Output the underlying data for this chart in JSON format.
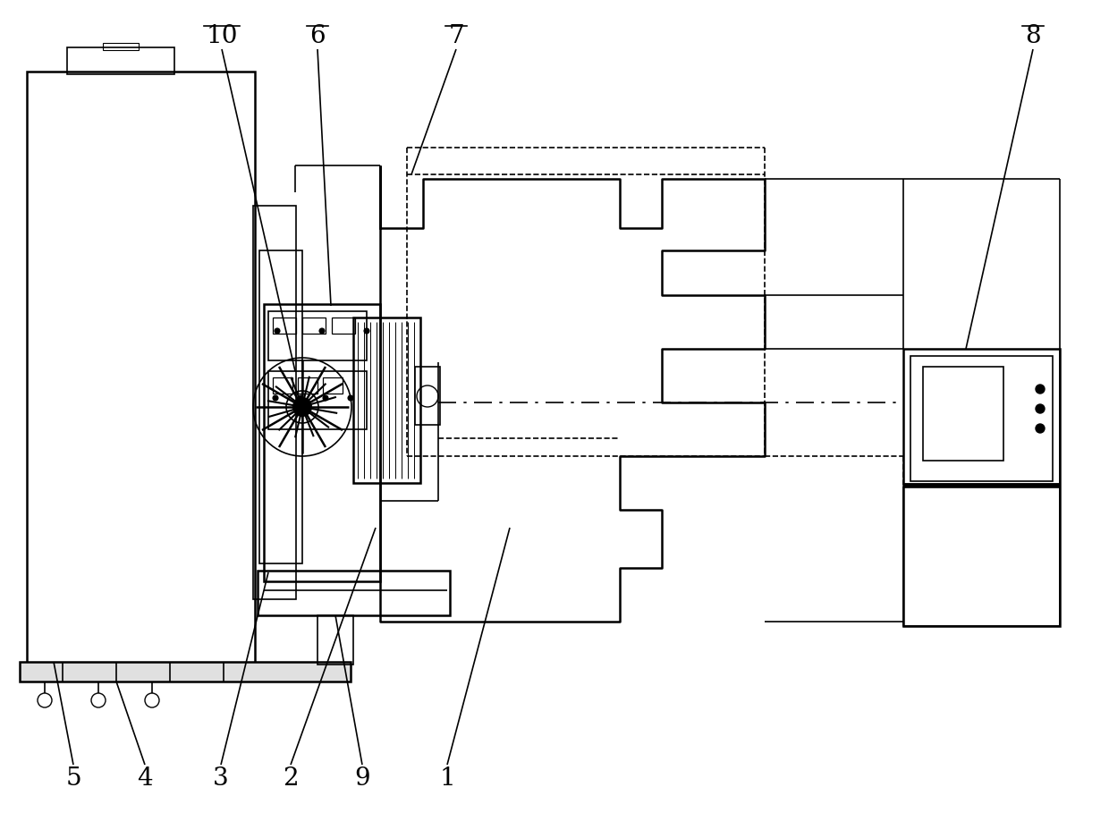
{
  "bg_color": "#ffffff",
  "line_color": "#000000",
  "fig_width": 12.4,
  "fig_height": 9.09
}
